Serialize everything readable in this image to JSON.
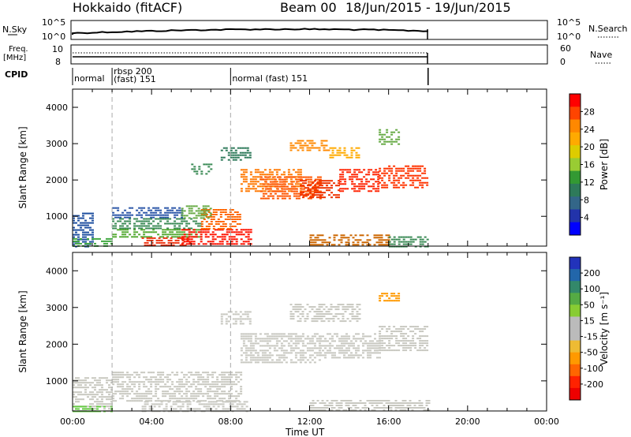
{
  "header": {
    "station": "Hokkaido (fitACF)",
    "beam": "Beam 00",
    "dates": "18/Jun/2015 - 19/Jun/2015"
  },
  "strips": {
    "nsky_label": "N.Sky",
    "nsky_ticks": [
      "10^5",
      "10^0"
    ],
    "nsearch_label": "N.Search",
    "freq_label": "Freq.",
    "freq_unit": "[MHz]",
    "freq_ticks": [
      "10",
      "8"
    ],
    "nave_label": "Nave",
    "nave_ticks": [
      "60",
      "0"
    ],
    "cpid_label": "CPID",
    "cpid_segments": [
      {
        "t": 0,
        "lines": [
          "normal"
        ]
      },
      {
        "t": 2,
        "lines": [
          "rbsp 200",
          "(fast) 151"
        ]
      },
      {
        "t": 8,
        "lines": [
          "normal (fast) 151"
        ]
      }
    ]
  },
  "chart_data": [
    {
      "type": "heatmap",
      "name": "power",
      "ylabel": "Slant Range [km]",
      "yticks": [
        1000,
        2000,
        3000,
        4000
      ],
      "ylim": [
        180,
        4500
      ],
      "xlim": [
        0,
        24
      ],
      "colorbar": {
        "label": "Power [dB]",
        "ticks": [
          "28",
          "24",
          "20",
          "16",
          "12",
          "8",
          "4"
        ],
        "colors": [
          "#ff0000",
          "#ff4400",
          "#ff8800",
          "#ffaa00",
          "#ddcc00",
          "#99cc33",
          "#339933",
          "#2e7a5a",
          "#336688",
          "#2233aa",
          "#0000ff"
        ]
      },
      "regions": [
        {
          "t0": 0.0,
          "t1": 1.0,
          "r0": 180,
          "r1": 1100,
          "c": "#1f4fa0"
        },
        {
          "t0": 0.0,
          "t1": 2.0,
          "r0": 180,
          "r1": 400,
          "c": "#44aa44"
        },
        {
          "t0": 2.0,
          "t1": 5.5,
          "r0": 950,
          "r1": 1250,
          "c": "#2b56a8"
        },
        {
          "t0": 2.0,
          "t1": 6.5,
          "r0": 650,
          "r1": 950,
          "c": "#3a8a55"
        },
        {
          "t0": 2.0,
          "t1": 6.5,
          "r0": 400,
          "r1": 650,
          "c": "#55aa33"
        },
        {
          "t0": 3.5,
          "t1": 6.0,
          "r0": 180,
          "r1": 420,
          "c": "#ee3311"
        },
        {
          "t0": 5.5,
          "t1": 9.0,
          "r0": 200,
          "r1": 650,
          "c": "#ff1100"
        },
        {
          "t0": 6.5,
          "t1": 8.5,
          "r0": 650,
          "r1": 1200,
          "c": "#ff6600"
        },
        {
          "t0": 5.5,
          "t1": 7.0,
          "r0": 950,
          "r1": 1300,
          "c": "#66aa44"
        },
        {
          "t0": 7.5,
          "t1": 9.0,
          "r0": 2550,
          "r1": 2900,
          "c": "#2e7a5a"
        },
        {
          "t0": 6.0,
          "t1": 7.0,
          "r0": 2150,
          "r1": 2450,
          "c": "#3a8a55"
        },
        {
          "t0": 8.5,
          "t1": 11.5,
          "r0": 1700,
          "r1": 2300,
          "c": "#ff7700"
        },
        {
          "t0": 9.5,
          "t1": 12.5,
          "r0": 1500,
          "r1": 2100,
          "c": "#ff5500"
        },
        {
          "t0": 11.5,
          "t1": 13.5,
          "r0": 1500,
          "r1": 2000,
          "c": "#ee3300"
        },
        {
          "t0": 13.5,
          "t1": 15.5,
          "r0": 1700,
          "r1": 2300,
          "c": "#ff2200"
        },
        {
          "t0": 15.5,
          "t1": 18.0,
          "r0": 1800,
          "r1": 2400,
          "c": "#ff3300"
        },
        {
          "t0": 11.0,
          "t1": 13.0,
          "r0": 2800,
          "r1": 3100,
          "c": "#ff8800"
        },
        {
          "t0": 13.0,
          "t1": 14.5,
          "r0": 2600,
          "r1": 2900,
          "c": "#ffaa00"
        },
        {
          "t0": 15.5,
          "t1": 16.5,
          "r0": 3000,
          "r1": 3400,
          "c": "#66aa44"
        },
        {
          "t0": 12.0,
          "t1": 16.0,
          "r0": 200,
          "r1": 500,
          "c": "#cc6600"
        },
        {
          "t0": 16.0,
          "t1": 18.0,
          "r0": 180,
          "r1": 450,
          "c": "#3a8a55"
        }
      ]
    },
    {
      "type": "heatmap",
      "name": "velocity",
      "ylabel": "Slant Range [km]",
      "xlabel": "Time UT",
      "yticks": [
        1000,
        2000,
        3000,
        4000
      ],
      "ylim": [
        180,
        4500
      ],
      "xlim": [
        0,
        24
      ],
      "xticks": [
        "00:00",
        "04:00",
        "08:00",
        "12:00",
        "16:00",
        "20:00",
        "00:00"
      ],
      "colorbar": {
        "label": "Velocity [m s⁻¹]",
        "ticks": [
          "200",
          "100",
          "50",
          "15",
          "-15",
          "-50",
          "-100",
          "-200"
        ],
        "colors": [
          "#2233bb",
          "#2266aa",
          "#33886a",
          "#55aa44",
          "#88cc33",
          "#bbbbbb",
          "#bbbbbb",
          "#eebb33",
          "#ff9900",
          "#ff6600",
          "#ff2200",
          "#ee0000"
        ]
      },
      "regions": [
        {
          "t0": 0.0,
          "t1": 2.0,
          "r0": 180,
          "r1": 1100,
          "c": "#c8c8c0"
        },
        {
          "t0": 0.0,
          "t1": 2.0,
          "r0": 180,
          "r1": 320,
          "c": "#66cc44"
        },
        {
          "t0": 2.0,
          "t1": 8.5,
          "r0": 450,
          "r1": 1250,
          "c": "#c8c8c0"
        },
        {
          "t0": 3.5,
          "t1": 8.8,
          "r0": 180,
          "r1": 450,
          "c": "#c8c8c0"
        },
        {
          "t0": 7.5,
          "t1": 9.0,
          "r0": 2550,
          "r1": 2900,
          "c": "#c8c8c0"
        },
        {
          "t0": 8.5,
          "t1": 12.5,
          "r0": 1500,
          "r1": 2300,
          "c": "#c8c8c0"
        },
        {
          "t0": 12.5,
          "t1": 15.5,
          "r0": 1600,
          "r1": 2300,
          "c": "#c8c8c0"
        },
        {
          "t0": 15.5,
          "t1": 18.0,
          "r0": 1800,
          "r1": 2500,
          "c": "#c8c8c0"
        },
        {
          "t0": 11.0,
          "t1": 14.5,
          "r0": 2600,
          "r1": 3100,
          "c": "#c8c8c0"
        },
        {
          "t0": 15.5,
          "t1": 16.5,
          "r0": 3200,
          "r1": 3400,
          "c": "#ff9900"
        },
        {
          "t0": 12.0,
          "t1": 18.0,
          "r0": 180,
          "r1": 480,
          "c": "#c8c8c0"
        }
      ]
    }
  ]
}
